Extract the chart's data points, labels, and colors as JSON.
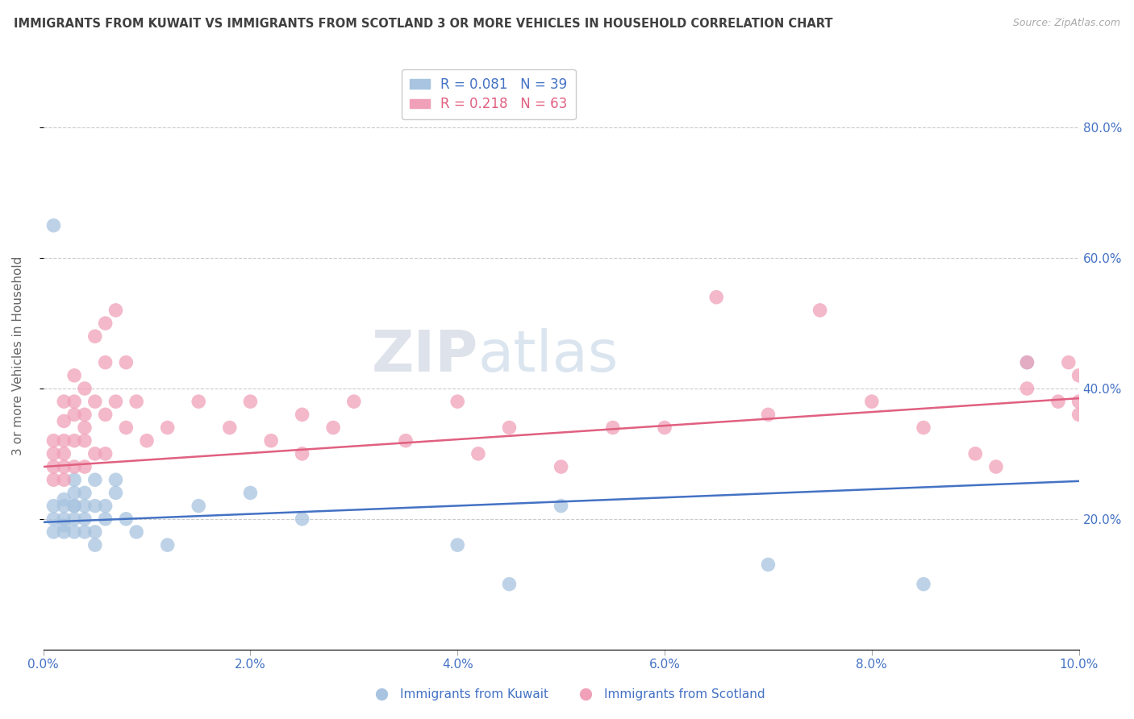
{
  "title": "IMMIGRANTS FROM KUWAIT VS IMMIGRANTS FROM SCOTLAND 3 OR MORE VEHICLES IN HOUSEHOLD CORRELATION CHART",
  "source": "Source: ZipAtlas.com",
  "ylabel": "3 or more Vehicles in Household",
  "r_kuwait": 0.081,
  "n_kuwait": 39,
  "r_scotland": 0.218,
  "n_scotland": 63,
  "color_kuwait": "#a8c4e0",
  "color_scotland": "#f0a0b8",
  "color_kuwait_line": "#4472c4",
  "color_scotland_line": "#e06080",
  "color_text": "#4472c4",
  "color_title": "#404040",
  "xlim": [
    0.0,
    0.1
  ],
  "ylim": [
    0.0,
    0.9
  ],
  "yticks_right": [
    0.8,
    0.6,
    0.4,
    0.2
  ],
  "xticks": [
    0.0,
    0.02,
    0.04,
    0.06,
    0.08,
    0.1
  ],
  "watermark_left": "ZIP",
  "watermark_right": "atlas",
  "kuwait_x": [
    0.001,
    0.001,
    0.001,
    0.001,
    0.002,
    0.002,
    0.002,
    0.002,
    0.002,
    0.003,
    0.003,
    0.003,
    0.003,
    0.003,
    0.003,
    0.004,
    0.004,
    0.004,
    0.004,
    0.005,
    0.005,
    0.005,
    0.005,
    0.006,
    0.006,
    0.007,
    0.007,
    0.008,
    0.009,
    0.012,
    0.015,
    0.02,
    0.025,
    0.04,
    0.045,
    0.05,
    0.07,
    0.085,
    0.095
  ],
  "kuwait_y": [
    0.2,
    0.22,
    0.18,
    0.65,
    0.2,
    0.22,
    0.18,
    0.23,
    0.19,
    0.24,
    0.22,
    0.26,
    0.2,
    0.18,
    0.22,
    0.24,
    0.2,
    0.22,
    0.18,
    0.26,
    0.22,
    0.18,
    0.16,
    0.2,
    0.22,
    0.26,
    0.24,
    0.2,
    0.18,
    0.16,
    0.22,
    0.24,
    0.2,
    0.16,
    0.1,
    0.22,
    0.13,
    0.1,
    0.44
  ],
  "scotland_x": [
    0.001,
    0.001,
    0.001,
    0.001,
    0.002,
    0.002,
    0.002,
    0.002,
    0.002,
    0.002,
    0.003,
    0.003,
    0.003,
    0.003,
    0.003,
    0.004,
    0.004,
    0.004,
    0.004,
    0.004,
    0.005,
    0.005,
    0.005,
    0.006,
    0.006,
    0.006,
    0.006,
    0.007,
    0.007,
    0.008,
    0.008,
    0.009,
    0.01,
    0.012,
    0.015,
    0.018,
    0.02,
    0.022,
    0.025,
    0.025,
    0.028,
    0.03,
    0.035,
    0.04,
    0.042,
    0.045,
    0.05,
    0.055,
    0.06,
    0.065,
    0.07,
    0.075,
    0.08,
    0.085,
    0.09,
    0.092,
    0.095,
    0.095,
    0.098,
    0.099,
    0.1,
    0.1,
    0.1
  ],
  "scotland_y": [
    0.28,
    0.3,
    0.26,
    0.32,
    0.35,
    0.3,
    0.38,
    0.26,
    0.32,
    0.28,
    0.42,
    0.38,
    0.32,
    0.28,
    0.36,
    0.4,
    0.34,
    0.28,
    0.32,
    0.36,
    0.48,
    0.38,
    0.3,
    0.5,
    0.44,
    0.36,
    0.3,
    0.52,
    0.38,
    0.44,
    0.34,
    0.38,
    0.32,
    0.34,
    0.38,
    0.34,
    0.38,
    0.32,
    0.36,
    0.3,
    0.34,
    0.38,
    0.32,
    0.38,
    0.3,
    0.34,
    0.28,
    0.34,
    0.34,
    0.54,
    0.36,
    0.52,
    0.38,
    0.34,
    0.3,
    0.28,
    0.44,
    0.4,
    0.38,
    0.44,
    0.42,
    0.38,
    0.36
  ]
}
